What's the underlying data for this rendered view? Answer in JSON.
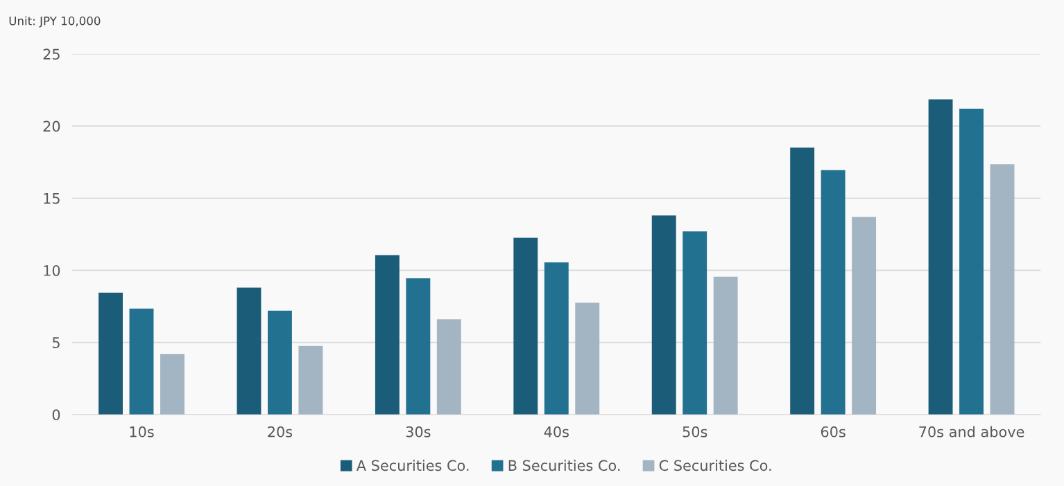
{
  "chart_data": {
    "type": "bar",
    "categories": [
      "10s",
      "20s",
      "30s",
      "40s",
      "50s",
      "60s",
      "70s and above"
    ],
    "series": [
      {
        "name": "A Securities Co.",
        "color": "#1b5c78",
        "values": [
          8.45,
          8.8,
          11.05,
          12.25,
          13.8,
          18.5,
          21.85
        ]
      },
      {
        "name": "B Securities Co.",
        "color": "#237190",
        "values": [
          7.35,
          7.2,
          9.45,
          10.55,
          12.7,
          16.95,
          21.2
        ]
      },
      {
        "name": "C Securities Co.",
        "color": "#a3b4c2",
        "values": [
          4.2,
          4.75,
          6.6,
          7.75,
          9.55,
          13.7,
          17.35
        ]
      }
    ],
    "ylim": [
      0,
      25
    ],
    "yticks": [
      0,
      5,
      10,
      15,
      20,
      25
    ],
    "grid": "y",
    "legend": "bottom",
    "annotations": [
      "Unit: JPY 10,000"
    ]
  }
}
